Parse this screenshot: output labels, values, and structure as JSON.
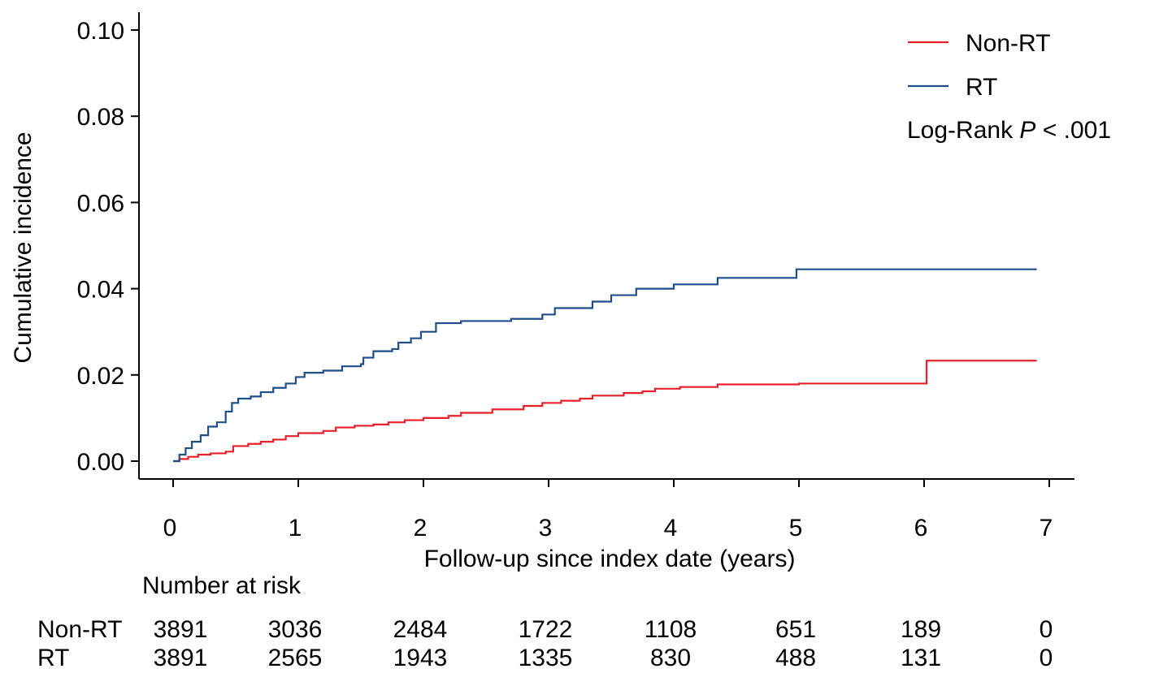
{
  "chart_data": {
    "type": "line",
    "title": "",
    "xlabel": "Follow-up since index date (years)",
    "ylabel": "Cumulative incidence",
    "xlim": [
      0,
      7
    ],
    "ylim": [
      0,
      0.1
    ],
    "x_ticks": [
      "0",
      "1",
      "2",
      "3",
      "4",
      "5",
      "6",
      "7"
    ],
    "y_ticks": [
      "0.00",
      "0.02",
      "0.04",
      "0.06",
      "0.08",
      "0.10"
    ],
    "grid": false,
    "legend": {
      "placement": "top-right",
      "annotation_prefix": "Log-Rank ",
      "annotation_italic": "P",
      "annotation_suffix": " < .001"
    },
    "series": [
      {
        "name": "Non-RT",
        "color": "#e8202a",
        "step": true,
        "points": [
          [
            0,
            0
          ],
          [
            0.05,
            0.0005
          ],
          [
            0.12,
            0.001
          ],
          [
            0.2,
            0.0015
          ],
          [
            0.3,
            0.0018
          ],
          [
            0.42,
            0.0022
          ],
          [
            0.48,
            0.0035
          ],
          [
            0.6,
            0.004
          ],
          [
            0.7,
            0.0045
          ],
          [
            0.8,
            0.005
          ],
          [
            0.9,
            0.0058
          ],
          [
            1.0,
            0.0065
          ],
          [
            1.2,
            0.007
          ],
          [
            1.3,
            0.0078
          ],
          [
            1.45,
            0.0082
          ],
          [
            1.6,
            0.0085
          ],
          [
            1.72,
            0.009
          ],
          [
            1.85,
            0.0095
          ],
          [
            2.0,
            0.01
          ],
          [
            2.2,
            0.0105
          ],
          [
            2.3,
            0.0112
          ],
          [
            2.55,
            0.012
          ],
          [
            2.8,
            0.0128
          ],
          [
            2.95,
            0.0135
          ],
          [
            3.1,
            0.014
          ],
          [
            3.25,
            0.0145
          ],
          [
            3.35,
            0.0152
          ],
          [
            3.6,
            0.0158
          ],
          [
            3.75,
            0.0162
          ],
          [
            3.85,
            0.0168
          ],
          [
            4.05,
            0.0172
          ],
          [
            4.35,
            0.0178
          ],
          [
            5.0,
            0.018
          ],
          [
            6.0,
            0.018
          ],
          [
            6.02,
            0.0233
          ],
          [
            6.9,
            0.0233
          ]
        ]
      },
      {
        "name": "RT",
        "color": "#1f4e8c",
        "step": true,
        "points": [
          [
            0,
            0
          ],
          [
            0.05,
            0.0015
          ],
          [
            0.1,
            0.003
          ],
          [
            0.15,
            0.0045
          ],
          [
            0.22,
            0.006
          ],
          [
            0.28,
            0.008
          ],
          [
            0.35,
            0.009
          ],
          [
            0.42,
            0.0115
          ],
          [
            0.47,
            0.0135
          ],
          [
            0.52,
            0.0145
          ],
          [
            0.62,
            0.015
          ],
          [
            0.7,
            0.016
          ],
          [
            0.8,
            0.017
          ],
          [
            0.9,
            0.018
          ],
          [
            0.98,
            0.0195
          ],
          [
            1.05,
            0.0205
          ],
          [
            1.2,
            0.021
          ],
          [
            1.35,
            0.022
          ],
          [
            1.5,
            0.0225
          ],
          [
            1.52,
            0.024
          ],
          [
            1.6,
            0.0255
          ],
          [
            1.75,
            0.026
          ],
          [
            1.8,
            0.0275
          ],
          [
            1.9,
            0.0285
          ],
          [
            1.98,
            0.03
          ],
          [
            2.1,
            0.032
          ],
          [
            2.3,
            0.0325
          ],
          [
            2.7,
            0.033
          ],
          [
            2.95,
            0.034
          ],
          [
            3.05,
            0.0355
          ],
          [
            3.35,
            0.037
          ],
          [
            3.5,
            0.0385
          ],
          [
            3.7,
            0.04
          ],
          [
            4.0,
            0.041
          ],
          [
            4.35,
            0.0425
          ],
          [
            4.98,
            0.0445
          ],
          [
            6.9,
            0.0445
          ]
        ]
      }
    ],
    "risk_table": {
      "title": "Number at risk",
      "rows": [
        {
          "label": "Non-RT",
          "values": [
            "3891",
            "3036",
            "2484",
            "1722",
            "1108",
            "651",
            "189",
            "0"
          ]
        },
        {
          "label": "RT",
          "values": [
            "3891",
            "2565",
            "1943",
            "1335",
            "830",
            "488",
            "131",
            "0"
          ]
        }
      ]
    }
  }
}
